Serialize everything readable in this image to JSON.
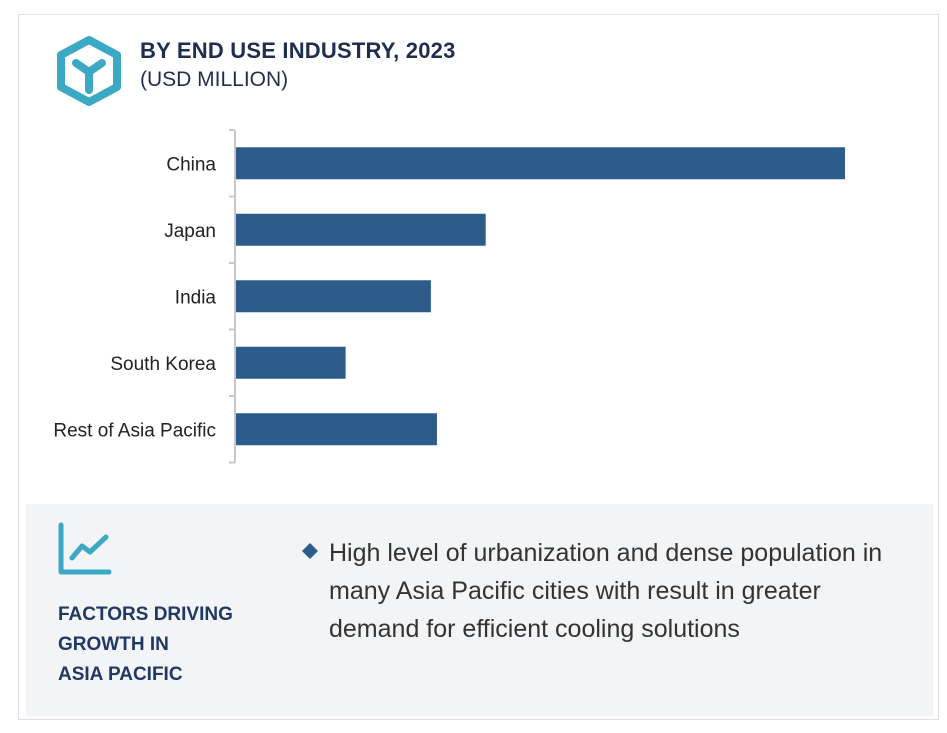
{
  "header": {
    "title": "BY END USE INDUSTRY, 2023",
    "subtitle": "(USD MILLION)",
    "logo_icon": "hexagon-y-logo-icon"
  },
  "colors": {
    "bar": "#2e5c8a",
    "accent": "#3ba8c4",
    "title": "#1f2d4e",
    "panel_bg": "#f3f4f6"
  },
  "chart_data": {
    "type": "bar",
    "orientation": "horizontal",
    "title": "BY END USE INDUSTRY, 2023",
    "subtitle": "(USD MILLION)",
    "categories": [
      "China",
      "Japan",
      "India",
      "South Korea",
      "Rest of Asia Pacific"
    ],
    "values": [
      100,
      41,
      32,
      18,
      33
    ],
    "xlabel": "",
    "ylabel": "",
    "xlim": [
      0,
      100
    ],
    "grid": false,
    "legend": "none"
  },
  "factors": {
    "icon": "line-chart-growth-icon",
    "title_lines": [
      "FACTORS DRIVING",
      "GROWTH IN",
      "ASIA PACIFIC"
    ],
    "bullet_icon": "diamond-bullet-icon",
    "bullets": [
      "High level of urbanization and dense population in many Asia Pacific cities with result in greater demand for efficient cooling solutions"
    ]
  }
}
